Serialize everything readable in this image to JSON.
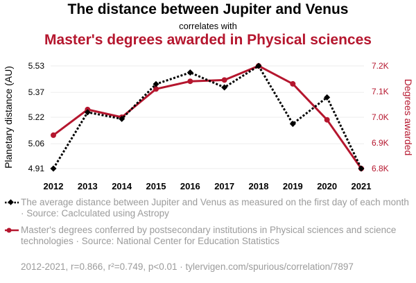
{
  "header": {
    "title": "The distance between Jupiter and Venus",
    "connector": "correlates with",
    "subtitle": "Master's degrees awarded in Physical sciences"
  },
  "colors": {
    "series1": "#000000",
    "series2": "#b5162e",
    "grid": "#eeeeee",
    "muted_text": "#9b9b9b"
  },
  "chart_data": {
    "type": "line",
    "x": [
      2012,
      2013,
      2014,
      2015,
      2016,
      2017,
      2018,
      2019,
      2020,
      2021
    ],
    "xlabels": [
      "2012",
      "2013",
      "2014",
      "2015",
      "2016",
      "2017",
      "2018",
      "2019",
      "2020",
      "2021"
    ],
    "grid": "horizontal",
    "series": [
      {
        "axis": "left",
        "style": "dotted",
        "marker": "diamond",
        "values": [
          4.91,
          5.25,
          5.21,
          5.42,
          5.49,
          5.4,
          5.53,
          5.18,
          5.34,
          4.91
        ]
      },
      {
        "axis": "right",
        "style": "solid",
        "marker": "circle",
        "values": [
          6.93,
          7.03,
          7.0,
          7.11,
          7.14,
          7.145,
          7.2,
          7.13,
          6.99,
          6.8
        ]
      }
    ],
    "y_left": {
      "label": "Planetary distance (AU)",
      "ticks": [
        4.91,
        5.06,
        5.22,
        5.37,
        5.53
      ],
      "tick_labels": [
        "4.91",
        "5.06",
        "5.22",
        "5.37",
        "5.53"
      ],
      "range": [
        4.91,
        5.53
      ]
    },
    "y_right": {
      "label": "Degrees awarded",
      "ticks": [
        6.8,
        6.9,
        7.0,
        7.1,
        7.2
      ],
      "tick_labels": [
        "6.8K",
        "6.9K",
        "7.0K",
        "7.1K",
        "7.2K"
      ],
      "range": [
        6.8,
        7.2
      ]
    }
  },
  "legend": [
    {
      "text": "The average distance between Jupiter and Venus as measured on the first day of each month · Source: Caclculated using Astropy"
    },
    {
      "text": "Master's degrees conferred by postsecondary institutions in Physical sciences and science technologies · Source: National Center for Education Statistics"
    }
  ],
  "footer": {
    "text": "2012-2021, r=0.866, r²=0.749, p<0.01 · tylervigen.com/spurious/correlation/7897"
  }
}
